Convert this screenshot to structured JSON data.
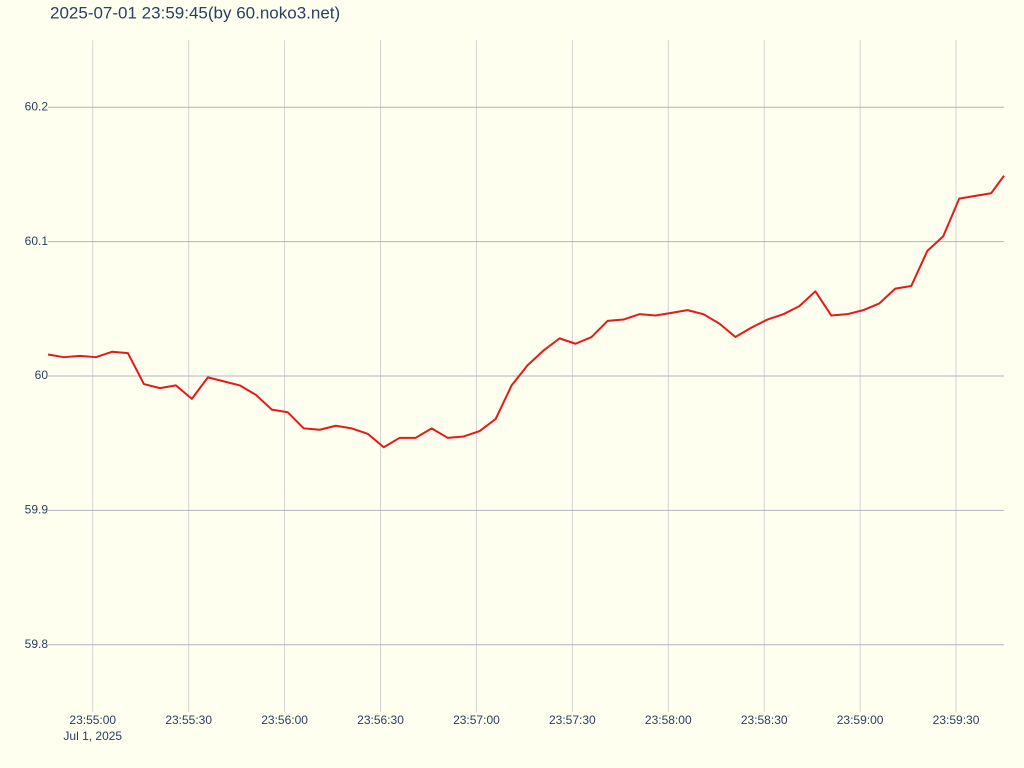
{
  "chart_data": {
    "type": "line",
    "title": "2025-07-01 23:59:45(by 60.noko3.net)",
    "x_date_label": "Jul 1, 2025",
    "x": [
      "23:54:46",
      "23:54:51",
      "23:54:56",
      "23:55:01",
      "23:55:06",
      "23:55:11",
      "23:55:16",
      "23:55:21",
      "23:55:26",
      "23:55:31",
      "23:55:36",
      "23:55:41",
      "23:55:46",
      "23:55:51",
      "23:55:56",
      "23:56:01",
      "23:56:06",
      "23:56:11",
      "23:56:16",
      "23:56:21",
      "23:56:26",
      "23:56:31",
      "23:56:36",
      "23:56:41",
      "23:56:46",
      "23:56:51",
      "23:56:56",
      "23:57:01",
      "23:57:06",
      "23:57:11",
      "23:57:16",
      "23:57:21",
      "23:57:26",
      "23:57:31",
      "23:57:36",
      "23:57:41",
      "23:57:46",
      "23:57:51",
      "23:57:56",
      "23:58:01",
      "23:58:06",
      "23:58:11",
      "23:58:16",
      "23:58:21",
      "23:58:26",
      "23:58:31",
      "23:58:36",
      "23:58:41",
      "23:58:46",
      "23:58:51",
      "23:58:56",
      "23:59:01",
      "23:59:06",
      "23:59:11",
      "23:59:16",
      "23:59:21",
      "23:59:26",
      "23:59:31",
      "23:59:36",
      "23:59:41",
      "23:59:45"
    ],
    "series": [
      {
        "color": "#e31a1c",
        "values": [
          60.016,
          60.014,
          60.015,
          60.014,
          60.018,
          60.017,
          59.994,
          59.991,
          59.993,
          59.983,
          59.999,
          59.996,
          59.993,
          59.986,
          59.975,
          59.973,
          59.961,
          59.96,
          59.963,
          59.961,
          59.957,
          59.947,
          59.954,
          59.954,
          59.961,
          59.954,
          59.955,
          59.959,
          59.968,
          59.993,
          60.008,
          60.019,
          60.028,
          60.024,
          60.029,
          60.041,
          60.042,
          60.046,
          60.045,
          60.047,
          60.049,
          60.046,
          60.039,
          60.029,
          60.036,
          60.042,
          60.046,
          60.052,
          60.063,
          60.045,
          60.046,
          60.049,
          60.054,
          60.065,
          60.067,
          60.093,
          60.104,
          60.132,
          60.134,
          60.136,
          60.149
        ]
      }
    ],
    "xlim": [
      "23:54:46",
      "23:59:45"
    ],
    "xticks": [
      "23:55:00",
      "23:55:30",
      "23:56:00",
      "23:56:30",
      "23:57:00",
      "23:57:30",
      "23:58:00",
      "23:58:30",
      "23:59:00",
      "23:59:30"
    ],
    "ylim": [
      59.75,
      60.25
    ],
    "yticks": [
      59.8,
      59.9,
      60,
      60.1,
      60.2
    ],
    "grid": true
  }
}
